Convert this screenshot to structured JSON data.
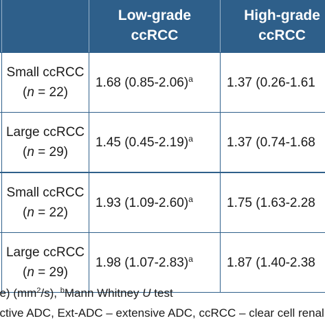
{
  "table": {
    "headers": {
      "low_grade": [
        "Low-grade",
        "ccRCC"
      ],
      "high_grade": [
        "High-grade",
        "ccRCC"
      ]
    },
    "rows": [
      {
        "size_label": "Small ccRCC",
        "n_prefix": "(",
        "n_var": "n",
        "n_suffix": " = 22)",
        "low_grade": "1.68 (0.85-2.06)",
        "low_grade_sup": "a",
        "high_grade": "1.37 (0.26-1.61"
      },
      {
        "size_label": "Large ccRCC",
        "n_prefix": "(",
        "n_var": "n",
        "n_suffix": " = 29)",
        "low_grade": "1.45 (0.45-2.19)",
        "low_grade_sup": "a",
        "high_grade": "1.37 (0.74-1.68"
      },
      {
        "size_label": "Small ccRCC",
        "n_prefix": "(",
        "n_var": "n",
        "n_suffix": " = 22)",
        "low_grade": "1.93 (1.09-2.60)",
        "low_grade_sup": "a",
        "high_grade": "1.75 (1.63-2.28"
      },
      {
        "size_label": "Large ccRCC",
        "n_prefix": "(",
        "n_var": "n",
        "n_suffix": " = 29)",
        "low_grade": "1.98 (1.07-2.83)",
        "low_grade_sup": "a",
        "high_grade": "1.87 (1.40-2.38"
      }
    ]
  },
  "footnotes": {
    "line1_pre": "ge) (mm",
    "line1_sup": "2",
    "line1_mid": "/s), ",
    "line1_sup_b": "b",
    "line1_post": "Mann Whitney ",
    "line1_ital": "U",
    "line1_end": " test",
    "line2": "ective ADC, Ext-ADC – extensive ADC, ccRCC – clear cell renal cell"
  },
  "colors": {
    "header_bg": "#2e5f8a",
    "header_text": "#ffffff",
    "rule": "#2e5f8a"
  }
}
